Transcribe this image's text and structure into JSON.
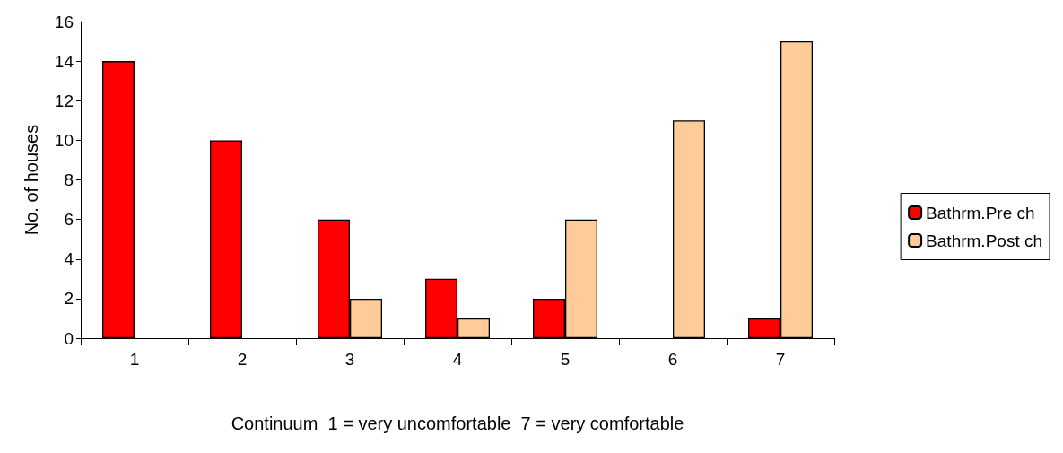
{
  "chart_data": {
    "type": "bar",
    "xlabel": "Continuum  1 = very uncomfortable  7 = very comfortable",
    "ylabel": "No. of houses",
    "categories": [
      "1",
      "2",
      "3",
      "4",
      "5",
      "6",
      "7"
    ],
    "series": [
      {
        "name": "Bathrm.Pre ch",
        "color": "#ff0000",
        "values": [
          14,
          10,
          6,
          3,
          2,
          0,
          1
        ]
      },
      {
        "name": "Bathrm.Post ch",
        "color": "#ffcc99",
        "values": [
          0,
          0,
          2,
          1,
          6,
          11,
          15
        ]
      }
    ],
    "ylim": [
      0,
      16
    ],
    "yticks": [
      0,
      2,
      4,
      6,
      8,
      10,
      12,
      14,
      16
    ],
    "grid": false,
    "legend": "right"
  }
}
